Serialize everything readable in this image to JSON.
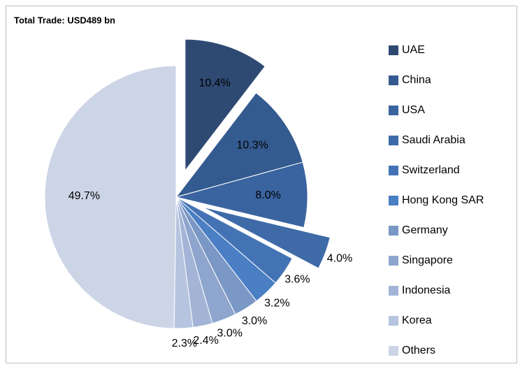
{
  "chart_data": {
    "type": "pie",
    "title": "Total Trade: USD489 bn",
    "categories": [
      "UAE",
      "China",
      "USA",
      "Saudi Arabia",
      "Switzerland",
      "Hong Kong SAR",
      "Germany",
      "Singapore",
      "Indonesia",
      "Korea",
      "Others"
    ],
    "values": [
      10.4,
      10.3,
      8.0,
      4.0,
      3.6,
      3.2,
      3.0,
      3.0,
      2.4,
      2.3,
      49.7
    ],
    "value_labels": [
      "10.4%",
      "10.3%",
      "8.0%",
      "4.0%",
      "3.6%",
      "3.2%",
      "3.0%",
      "3.0%",
      "2.4%",
      "2.3%",
      "49.7%"
    ],
    "colors": [
      "#2e4a73",
      "#345b8f",
      "#3a64a0",
      "#3e6aa8",
      "#4473b5",
      "#4a7fc4",
      "#7a97c5",
      "#8ea5cd",
      "#a3b4d6",
      "#b7c4df",
      "#ccd5e6"
    ],
    "exploded": [
      true,
      false,
      false,
      true,
      false,
      false,
      false,
      false,
      false,
      false,
      false
    ],
    "legend": "right"
  }
}
